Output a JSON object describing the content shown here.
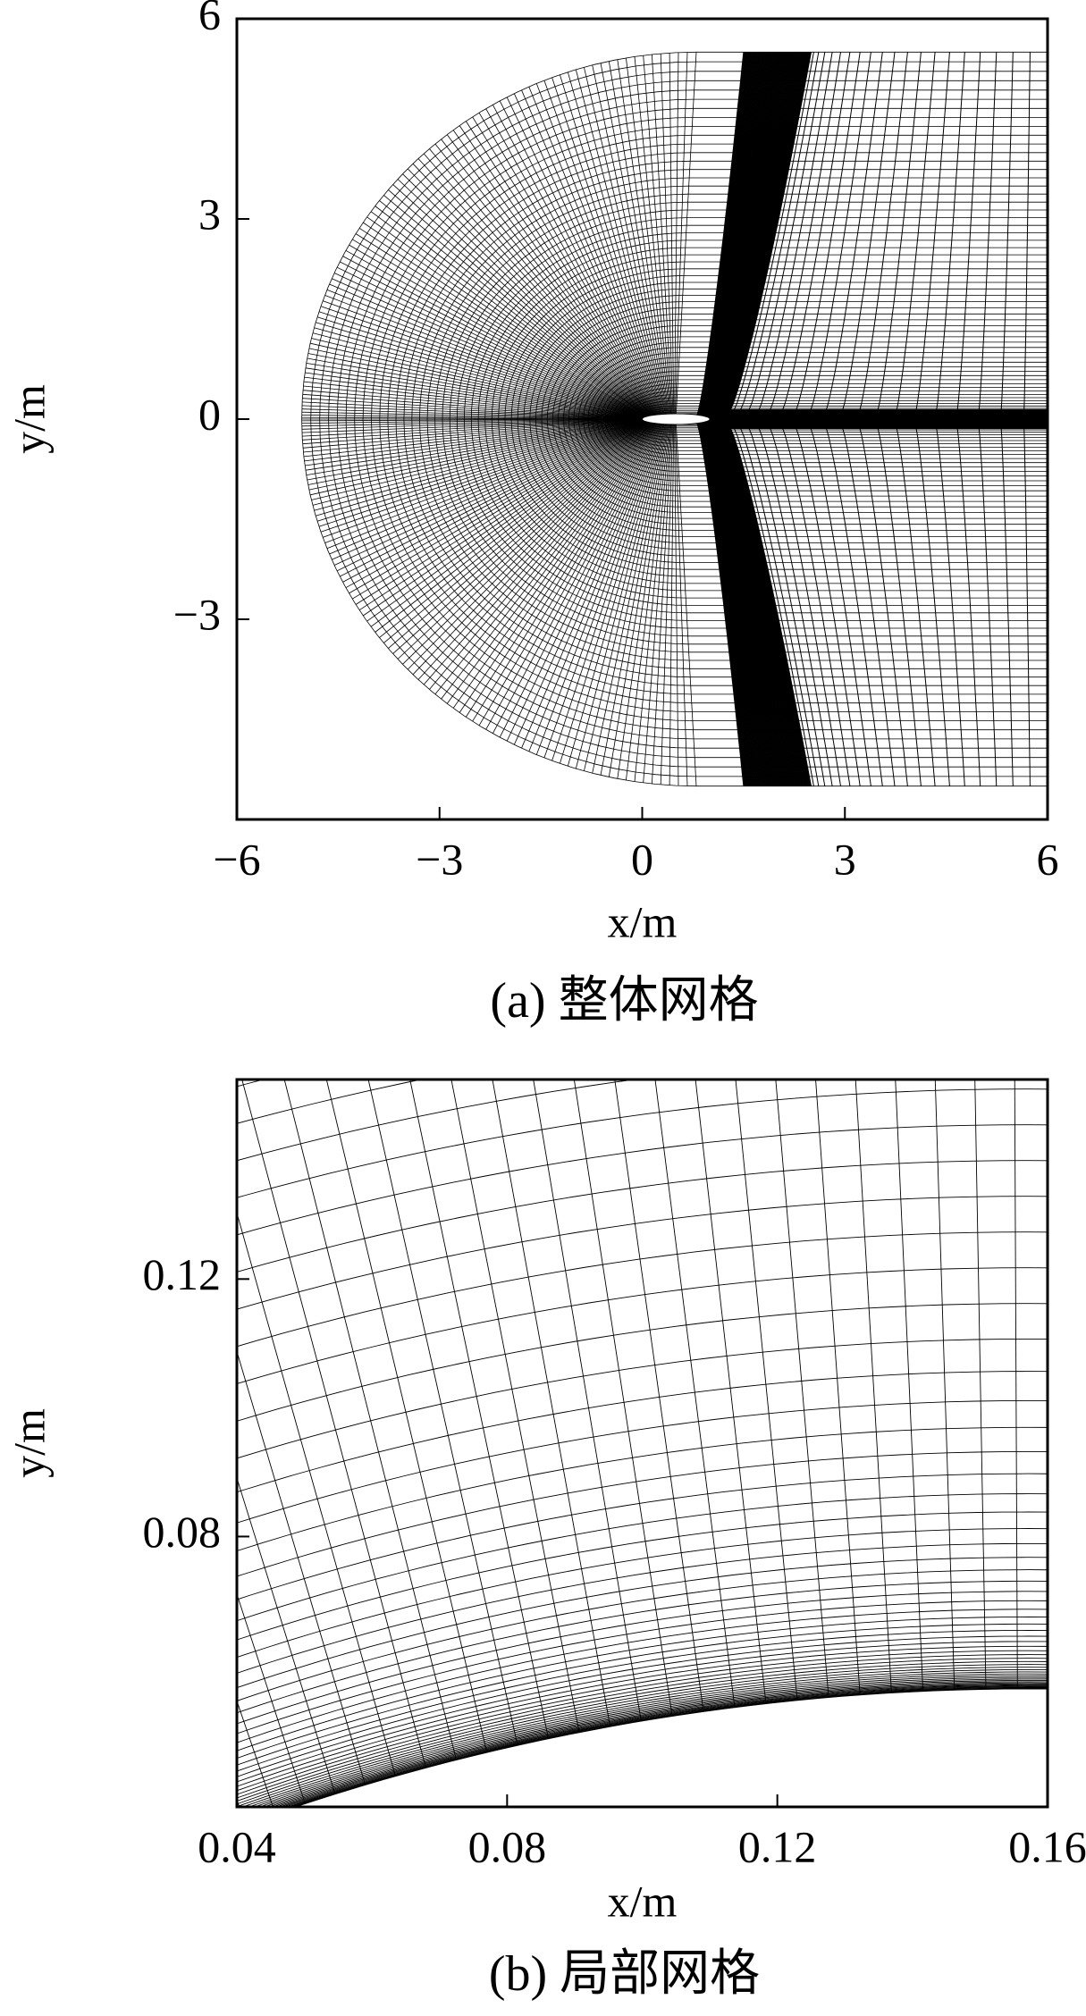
{
  "chart_data": [
    {
      "type": "mesh",
      "caption": "(a) 整体网格",
      "xlabel": "x/m",
      "ylabel": "y/m",
      "xlim": [
        -6,
        6
      ],
      "ylim": [
        -6,
        6
      ],
      "xticks": [
        {
          "value": -6,
          "label": "−6"
        },
        {
          "value": -3,
          "label": "−3"
        },
        0,
        3,
        6
      ],
      "yticks": [
        {
          "value": -3,
          "label": "−3"
        },
        0,
        3,
        6
      ]
    },
    {
      "type": "mesh",
      "caption": "(b) 局部网格",
      "xlabel": "x/m",
      "ylabel": "y/m",
      "xlim": [
        0.04,
        0.16
      ],
      "ylim": [
        0.038,
        0.151
      ],
      "xticks": [
        0.04,
        0.08,
        0.12,
        0.16
      ],
      "yticks": [
        0.08,
        0.12
      ]
    }
  ]
}
